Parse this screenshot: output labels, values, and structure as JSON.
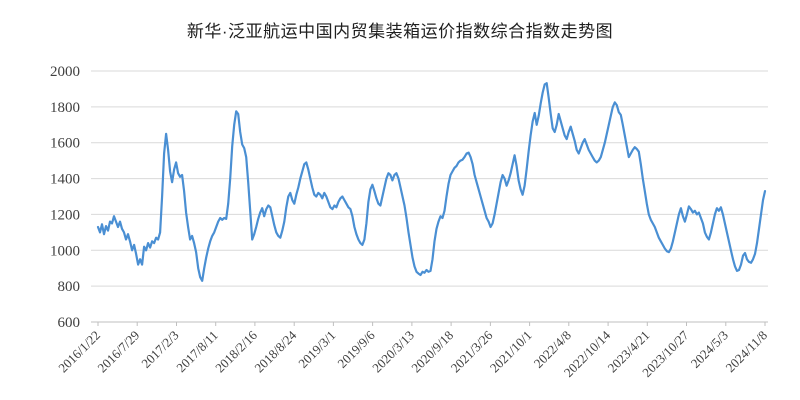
{
  "title": "新华·泛亚航运中国内贸集装箱运价指数综合指数走势图",
  "chart_data": {
    "type": "line",
    "title": "新华·泛亚航运中国内贸集装箱运价指数综合指数走势图",
    "series_name": "综合指数",
    "xlabel": "",
    "ylabel": "",
    "ylim": [
      600,
      2000
    ],
    "y_ticks": [
      600,
      800,
      1000,
      1200,
      1400,
      1600,
      1800,
      2000
    ],
    "x_tick_labels": [
      "2016/1/22",
      "2016/7/29",
      "2017/2/3",
      "2017/8/11",
      "2018/2/16",
      "2018/8/24",
      "2019/3/1",
      "2019/9/6",
      "2020/3/13",
      "2020/9/18",
      "2021/3/26",
      "2021/10/1",
      "2022/4/8",
      "2022/10/14",
      "2023/4/21",
      "2023/10/27",
      "2024/5/3",
      "2024/11/8"
    ],
    "x_range": [
      "2016/1/22",
      "2024/11/8"
    ],
    "sampling": "weekly values, evenly spaced",
    "grid": true,
    "legend": false,
    "line_color": "#4a8fd3",
    "grid_color": "#d9d9d9",
    "axis_color": "#bfbfbf",
    "label_color": "#404040",
    "values": [
      1130,
      1100,
      1145,
      1090,
      1135,
      1110,
      1160,
      1150,
      1190,
      1160,
      1130,
      1160,
      1120,
      1100,
      1060,
      1090,
      1050,
      1000,
      1030,
      980,
      920,
      950,
      920,
      1020,
      1000,
      1040,
      1015,
      1050,
      1040,
      1070,
      1060,
      1100,
      1300,
      1540,
      1650,
      1560,
      1440,
      1380,
      1450,
      1490,
      1430,
      1410,
      1420,
      1330,
      1210,
      1130,
      1060,
      1080,
      1040,
      990,
      900,
      850,
      830,
      900,
      960,
      1010,
      1050,
      1080,
      1100,
      1130,
      1160,
      1180,
      1170,
      1180,
      1175,
      1260,
      1400,
      1580,
      1700,
      1775,
      1760,
      1660,
      1590,
      1570,
      1520,
      1380,
      1220,
      1060,
      1090,
      1130,
      1175,
      1210,
      1235,
      1190,
      1230,
      1250,
      1240,
      1190,
      1140,
      1100,
      1080,
      1070,
      1110,
      1160,
      1240,
      1300,
      1320,
      1280,
      1260,
      1310,
      1350,
      1400,
      1440,
      1480,
      1490,
      1450,
      1400,
      1350,
      1310,
      1300,
      1320,
      1310,
      1290,
      1320,
      1300,
      1270,
      1240,
      1230,
      1250,
      1240,
      1270,
      1290,
      1300,
      1280,
      1260,
      1240,
      1230,
      1190,
      1130,
      1090,
      1060,
      1040,
      1030,
      1060,
      1150,
      1270,
      1340,
      1365,
      1330,
      1290,
      1260,
      1250,
      1300,
      1350,
      1400,
      1430,
      1420,
      1390,
      1420,
      1430,
      1400,
      1350,
      1300,
      1250,
      1180,
      1100,
      1030,
      960,
      910,
      880,
      870,
      862,
      880,
      875,
      890,
      880,
      885,
      950,
      1050,
      1120,
      1160,
      1190,
      1180,
      1220,
      1300,
      1370,
      1420,
      1440,
      1460,
      1470,
      1490,
      1500,
      1505,
      1520,
      1540,
      1545,
      1520,
      1480,
      1420,
      1380,
      1340,
      1300,
      1260,
      1220,
      1180,
      1160,
      1130,
      1150,
      1200,
      1260,
      1320,
      1380,
      1420,
      1400,
      1360,
      1390,
      1430,
      1480,
      1530,
      1470,
      1390,
      1340,
      1310,
      1360,
      1450,
      1550,
      1640,
      1720,
      1766,
      1700,
      1750,
      1820,
      1880,
      1925,
      1932,
      1850,
      1760,
      1680,
      1660,
      1700,
      1760,
      1720,
      1680,
      1640,
      1620,
      1660,
      1690,
      1650,
      1610,
      1560,
      1540,
      1570,
      1600,
      1620,
      1590,
      1560,
      1540,
      1520,
      1500,
      1490,
      1500,
      1520,
      1560,
      1600,
      1650,
      1700,
      1750,
      1800,
      1825,
      1810,
      1770,
      1755,
      1700,
      1640,
      1580,
      1520,
      1540,
      1560,
      1575,
      1565,
      1550,
      1480,
      1400,
      1330,
      1260,
      1200,
      1170,
      1150,
      1130,
      1100,
      1070,
      1050,
      1030,
      1010,
      995,
      990,
      1010,
      1050,
      1100,
      1150,
      1200,
      1235,
      1190,
      1160,
      1200,
      1245,
      1230,
      1210,
      1220,
      1200,
      1210,
      1180,
      1150,
      1100,
      1075,
      1060,
      1100,
      1150,
      1200,
      1235,
      1220,
      1240,
      1200,
      1150,
      1100,
      1050,
      1000,
      950,
      910,
      885,
      890,
      920,
      970,
      985,
      950,
      935,
      930,
      950,
      980,
      1040,
      1120,
      1200,
      1280,
      1330
    ]
  }
}
